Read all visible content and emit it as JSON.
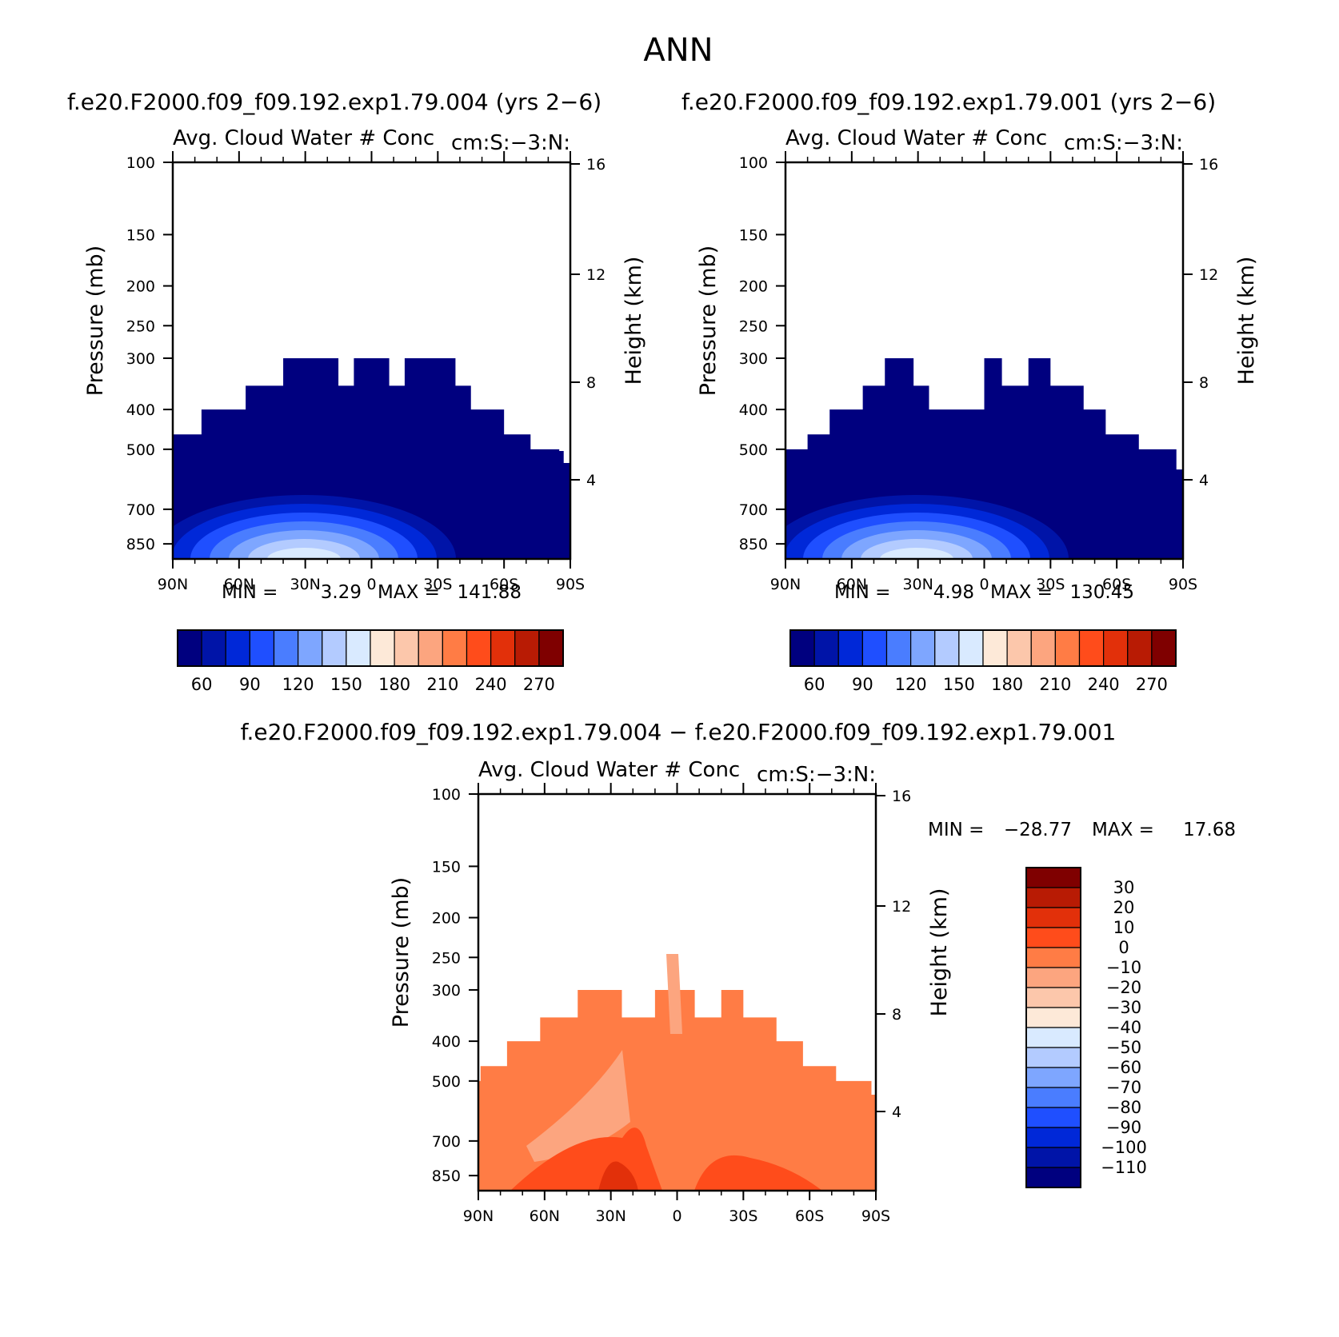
{
  "figure": {
    "title": "ANN",
    "diff_title": "f.e20.F2000.f09_f09.192.exp1.79.004 − f.e20.F2000.f09_f09.192.exp1.79.001"
  },
  "colors": {
    "blue_scale": [
      "#00007f",
      "#0014a8",
      "#0028d8",
      "#1f4fff",
      "#4a7dff",
      "#7ea6ff",
      "#b3cbff",
      "#d9eaff",
      "#fde9d8",
      "#fcc7ab",
      "#fca57f",
      "#ff7c45",
      "#ff4c1b",
      "#e2300a",
      "#b81b04",
      "#7f0000"
    ],
    "diff_scale": [
      "#7f0000",
      "#b81b04",
      "#e2300a",
      "#ff4c1b",
      "#ff7c45",
      "#fca57f",
      "#fcc7ab",
      "#fde9d8",
      "#d9eaff",
      "#b3cbff",
      "#7ea6ff",
      "#4a7dff",
      "#1f4fff",
      "#0028d8",
      "#0014a8",
      "#00007f"
    ]
  },
  "chart_data": [
    {
      "type": "heatmap",
      "case_title": "f.e20.F2000.f09_f09.192.exp1.79.004 (yrs 2−6)",
      "title_left": "Avg. Cloud Water # Conc",
      "title_right": "cm:S:−3:N:",
      "xlabel": "",
      "ylabel": "Pressure (mb)",
      "ylabel_right": "Height (km)",
      "x_ticks": [
        "90N",
        "60N",
        "30N",
        "0",
        "30S",
        "60S",
        "90S"
      ],
      "x_range": [
        90,
        -90
      ],
      "y_ticks": [
        100,
        150,
        200,
        250,
        300,
        400,
        500,
        700,
        850
      ],
      "y_range": [
        100,
        925
      ],
      "height_ticks": [
        16,
        12,
        8,
        4
      ],
      "min_label": "MIN =",
      "min_value": "3.29",
      "max_label": "MAX =",
      "max_value": "141.88",
      "colorbar_labels": [
        "60",
        "90",
        "120",
        "150",
        "180",
        "210",
        "240",
        "270"
      ],
      "cloud_top_pressure": [
        {
          "lat": -90,
          "p": 540
        },
        {
          "lat": -87,
          "p": 505
        },
        {
          "lat": -85,
          "p": 500
        },
        {
          "lat": -72,
          "p": 460
        },
        {
          "lat": -60,
          "p": 400
        },
        {
          "lat": -45,
          "p": 350
        },
        {
          "lat": -38,
          "p": 300
        },
        {
          "lat": -15,
          "p": 350
        },
        {
          "lat": -8,
          "p": 300
        },
        {
          "lat": 8,
          "p": 350
        },
        {
          "lat": 15,
          "p": 300
        },
        {
          "lat": 40,
          "p": 350
        },
        {
          "lat": 57,
          "p": 400
        },
        {
          "lat": 77,
          "p": 460
        },
        {
          "lat": 89,
          "p": 460
        }
      ]
    },
    {
      "type": "heatmap",
      "case_title": "f.e20.F2000.f09_f09.192.exp1.79.001 (yrs 2−6)",
      "title_left": "Avg. Cloud Water # Conc",
      "title_right": "cm:S:−3:N:",
      "xlabel": "",
      "ylabel": "Pressure (mb)",
      "ylabel_right": "Height (km)",
      "x_ticks": [
        "90N",
        "60N",
        "30N",
        "0",
        "30S",
        "60S",
        "90S"
      ],
      "x_range": [
        90,
        -90
      ],
      "y_ticks": [
        100,
        150,
        200,
        250,
        300,
        400,
        500,
        700,
        850
      ],
      "y_range": [
        100,
        925
      ],
      "height_ticks": [
        16,
        12,
        8,
        4
      ],
      "min_label": "MIN =",
      "min_value": "4.98",
      "max_label": "MAX =",
      "max_value": "130.45",
      "colorbar_labels": [
        "60",
        "90",
        "120",
        "150",
        "180",
        "210",
        "240",
        "270"
      ],
      "cloud_top_pressure": [
        {
          "lat": -90,
          "p": 560
        },
        {
          "lat": -87,
          "p": 500
        },
        {
          "lat": -70,
          "p": 460
        },
        {
          "lat": -55,
          "p": 400
        },
        {
          "lat": -45,
          "p": 350
        },
        {
          "lat": -30,
          "p": 300
        },
        {
          "lat": -20,
          "p": 350
        },
        {
          "lat": -8,
          "p": 300
        },
        {
          "lat": 0,
          "p": 400
        },
        {
          "lat": 25,
          "p": 350
        },
        {
          "lat": 32,
          "p": 300
        },
        {
          "lat": 45,
          "p": 350
        },
        {
          "lat": 55,
          "p": 400
        },
        {
          "lat": 70,
          "p": 460
        },
        {
          "lat": 80,
          "p": 500
        },
        {
          "lat": 89,
          "p": 500
        }
      ]
    },
    {
      "type": "heatmap",
      "case_title": "",
      "title_left": "Avg. Cloud Water # Conc",
      "title_right": "cm:S:−3:N:",
      "xlabel": "",
      "ylabel": "Pressure (mb)",
      "ylabel_right": "Height (km)",
      "x_ticks": [
        "90N",
        "60N",
        "30N",
        "0",
        "30S",
        "60S",
        "90S"
      ],
      "x_range": [
        90,
        -90
      ],
      "y_ticks": [
        100,
        150,
        200,
        250,
        300,
        400,
        500,
        700,
        850
      ],
      "y_range": [
        100,
        925
      ],
      "height_ticks": [
        16,
        12,
        8,
        4
      ],
      "min_label": "MIN =",
      "min_value": "−28.77",
      "max_label": "MAX =",
      "max_value": "17.68",
      "colorbar_labels": [
        "30",
        "20",
        "10",
        "0",
        "−10",
        "−20",
        "−30",
        "−40",
        "−50",
        "−60",
        "−70",
        "−80",
        "−90",
        "−100",
        "−110"
      ],
      "cloud_top_pressure": [
        {
          "lat": -90,
          "p": 540
        },
        {
          "lat": -88,
          "p": 500
        },
        {
          "lat": -72,
          "p": 460
        },
        {
          "lat": -57,
          "p": 400
        },
        {
          "lat": -45,
          "p": 350
        },
        {
          "lat": -30,
          "p": 300
        },
        {
          "lat": -20,
          "p": 350
        },
        {
          "lat": -8,
          "p": 300
        },
        {
          "lat": 10,
          "p": 350
        },
        {
          "lat": 25,
          "p": 300
        },
        {
          "lat": 45,
          "p": 350
        },
        {
          "lat": 62,
          "p": 400
        },
        {
          "lat": 77,
          "p": 460
        },
        {
          "lat": 89,
          "p": 500
        }
      ]
    }
  ]
}
